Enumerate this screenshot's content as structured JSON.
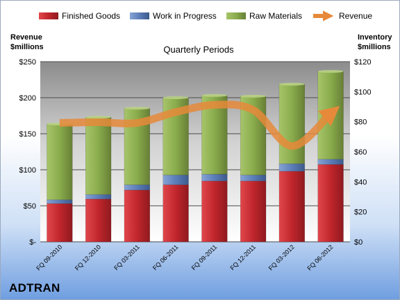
{
  "chart_data": {
    "type": "bar",
    "stacked": true,
    "subtitle": "Quarterly Periods",
    "company": "ADTRAN",
    "categories": [
      "FQ 09-2010",
      "FQ 12-2010",
      "FQ 03-2011",
      "FQ 06-2011",
      "FQ 09-2011",
      "FQ 12-2011",
      "FQ 03-2012",
      "FQ 06-2012"
    ],
    "left_axis": {
      "label_line1": "Revenue",
      "label_line2": "$millions",
      "range": [
        0,
        250
      ],
      "ticks": [
        {
          "value": 0,
          "label": "$-"
        },
        {
          "value": 50,
          "label": "$50"
        },
        {
          "value": 100,
          "label": "$100"
        },
        {
          "value": 150,
          "label": "$150"
        },
        {
          "value": 200,
          "label": "$200"
        },
        {
          "value": 250,
          "label": "$250"
        }
      ]
    },
    "right_axis": {
      "label_line1": "Inventory",
      "label_line2": "$millions",
      "range": [
        0,
        120
      ],
      "ticks": [
        {
          "value": 0,
          "label": "$0"
        },
        {
          "value": 20,
          "label": "$20"
        },
        {
          "value": 40,
          "label": "$40"
        },
        {
          "value": 60,
          "label": "$60"
        },
        {
          "value": 80,
          "label": "$80"
        },
        {
          "value": 100,
          "label": "$100"
        },
        {
          "value": 120,
          "label": "$120"
        }
      ]
    },
    "series": [
      {
        "name": "Finished Goods",
        "axis": "right",
        "color": "#c0262c",
        "values": [
          25.5,
          28.5,
          34.5,
          38,
          40.5,
          40.5,
          47,
          51.5
        ]
      },
      {
        "name": "Work in Progress",
        "axis": "right",
        "color": "#5b7db8",
        "values": [
          2.5,
          3,
          3.5,
          6.5,
          4.5,
          4,
          5,
          3.5
        ]
      },
      {
        "name": "Raw Materials",
        "axis": "right",
        "color": "#8aac4c",
        "values": [
          50.5,
          51.5,
          51,
          51.5,
          52.5,
          52.5,
          53,
          58.5
        ]
      },
      {
        "name": "Revenue",
        "axis": "left",
        "type": "line",
        "color": "#e6893a",
        "values": [
          165,
          166,
          165,
          180,
          190,
          183,
          133,
          178
        ]
      }
    ],
    "grid": true,
    "legend_position": "top"
  }
}
